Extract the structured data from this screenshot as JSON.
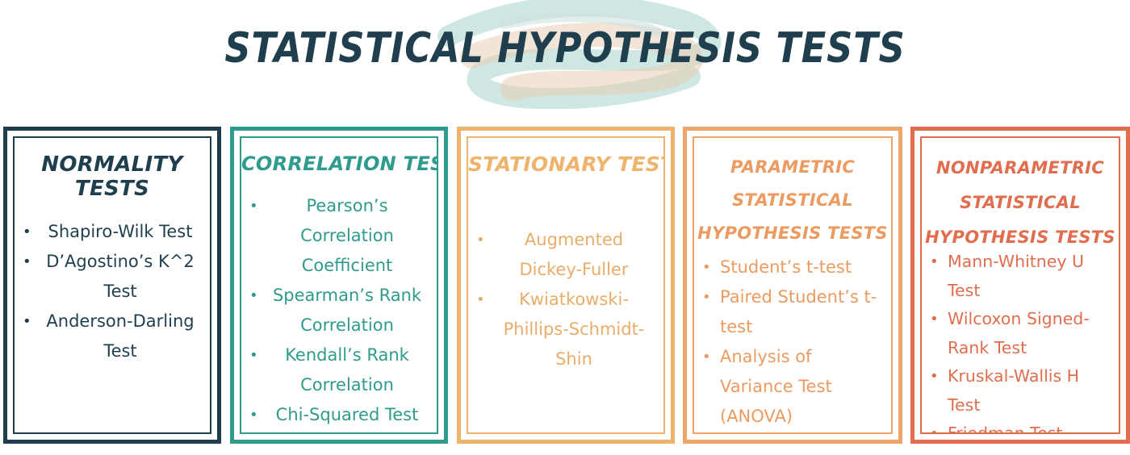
{
  "title": "STATISTICAL HYPOTHESIS TESTS",
  "colors": {
    "navy": "#1f3f4f",
    "teal": "#2e9b8c",
    "sand": "#efb46c",
    "orange": "#ec9b60",
    "coral": "#e06e4e"
  },
  "categories": [
    {
      "heading_lines": [
        "NORMALITY TESTS"
      ],
      "items": [
        "Shapiro-Wilk Test",
        "D’Agostino’s K^2 Test",
        "Anderson-Darling Test"
      ]
    },
    {
      "heading_lines": [
        "CORRELATION TESTS"
      ],
      "items": [
        "Pearson’s Correlation Coefficient",
        "Spearman’s Rank Correlation",
        "Kendall’s Rank Correlation",
        "Chi-Squared Test"
      ]
    },
    {
      "heading_lines": [
        "STATIONARY TESTS"
      ],
      "items": [
        "Augmented Dickey-Fuller",
        "Kwiatkowski-Phillips-Schmidt-Shin"
      ]
    },
    {
      "heading_lines": [
        "PARAMETRIC",
        "STATISTICAL",
        "HYPOTHESIS TESTS"
      ],
      "items": [
        "Student’s t-test",
        "Paired Student’s t-test",
        "Analysis of Variance Test (ANOVA)"
      ]
    },
    {
      "heading_lines": [
        "NONPARAMETRIC",
        "STATISTICAL",
        "HYPOTHESIS TESTS"
      ],
      "items": [
        "Mann-Whitney U Test",
        "Wilcoxon Signed-Rank Test",
        "Kruskal-Wallis H Test",
        "Friedman Test"
      ]
    }
  ]
}
